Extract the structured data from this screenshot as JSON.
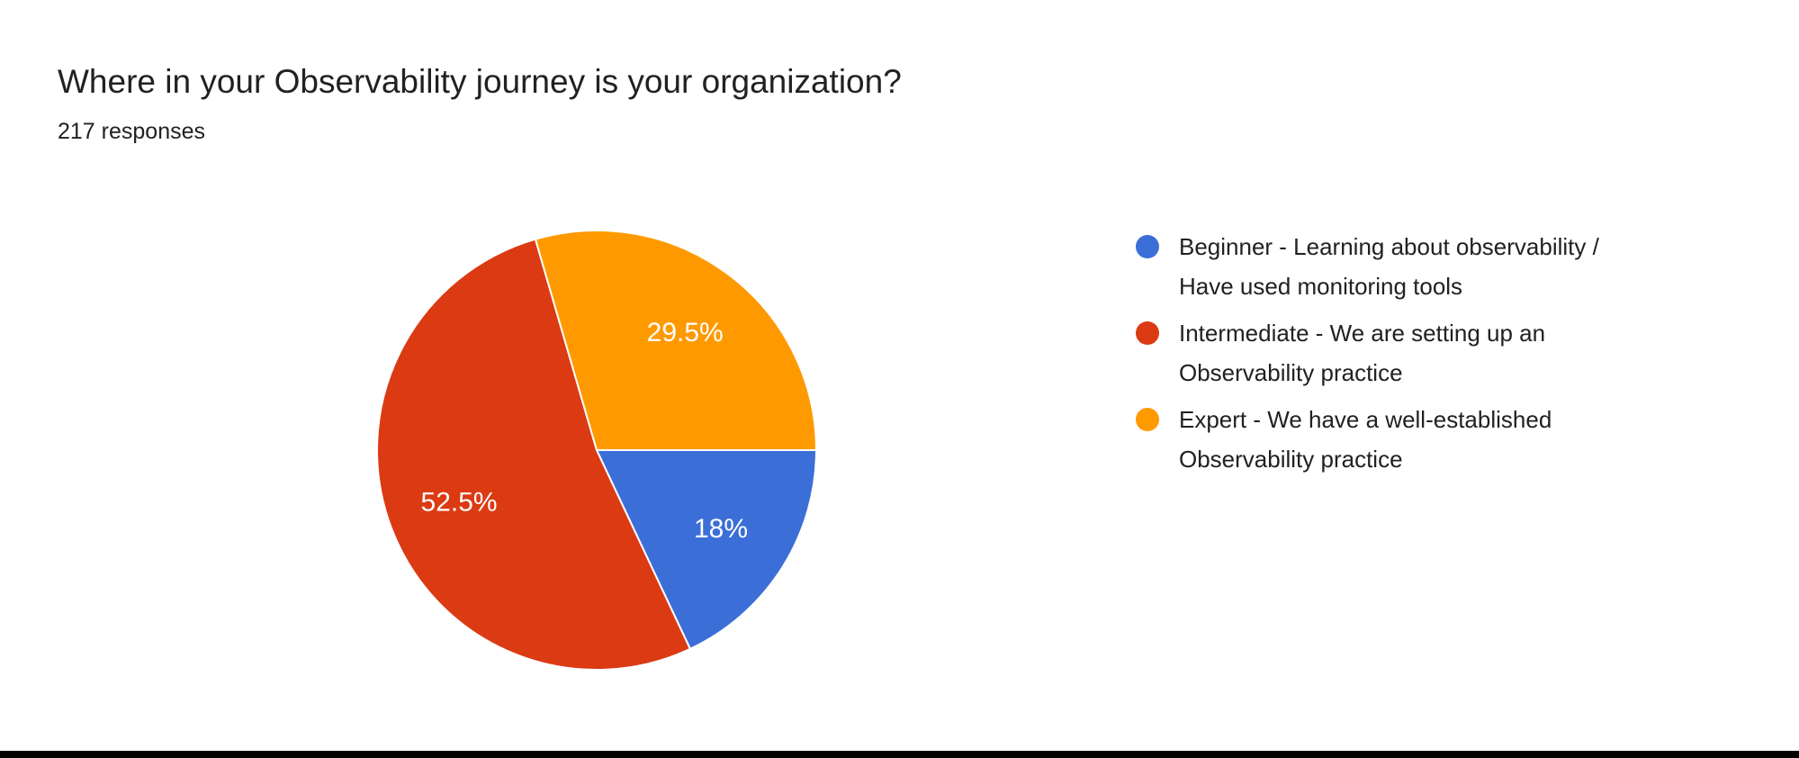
{
  "header": {
    "title": "Where in your Observability journey is your organization?",
    "subtitle": "217 responses"
  },
  "chart_data": {
    "type": "pie",
    "title": "Where in your Observability journey is your organization?",
    "responses_total": 217,
    "start_angle_deg": 90,
    "direction": "clockwise",
    "legend_position": "right",
    "slice_label_color": "#ffffff",
    "slice_border_color": "#ffffff",
    "slices": [
      {
        "label": "Beginner - Learning about observability /\nHave used monitoring tools",
        "value_pct": 18,
        "display_pct": "18%",
        "color": "#3C6ED7"
      },
      {
        "label": "Intermediate - We are setting up an\nObservability practice",
        "value_pct": 52.5,
        "display_pct": "52.5%",
        "color": "#DB3A13"
      },
      {
        "label": "Expert - We have a well-established\nObservability practice",
        "value_pct": 29.5,
        "display_pct": "29.5%",
        "color": "#FF9900"
      }
    ]
  },
  "footer": {
    "bar_color": "#000000"
  }
}
